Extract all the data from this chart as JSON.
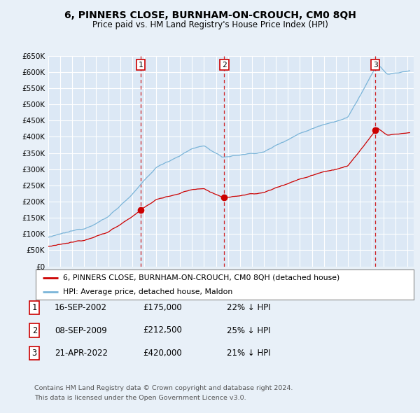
{
  "title": "6, PINNERS CLOSE, BURNHAM-ON-CROUCH, CM0 8QH",
  "subtitle": "Price paid vs. HM Land Registry's House Price Index (HPI)",
  "background_color": "#e8f0f8",
  "plot_bg_color": "#dce8f5",
  "grid_color": "#c8d8e8",
  "ylim": [
    0,
    650000
  ],
  "yticks": [
    0,
    50000,
    100000,
    150000,
    200000,
    250000,
    300000,
    350000,
    400000,
    450000,
    500000,
    550000,
    600000,
    650000
  ],
  "sale_dates": [
    2002.71,
    2009.69,
    2022.3
  ],
  "sale_prices": [
    175000,
    212500,
    420000
  ],
  "sale_labels": [
    "1",
    "2",
    "3"
  ],
  "hpi_color": "#7ab4d8",
  "price_color": "#cc0000",
  "vline_color": "#cc0000",
  "legend_label_price": "6, PINNERS CLOSE, BURNHAM-ON-CROUCH, CM0 8QH (detached house)",
  "legend_label_hpi": "HPI: Average price, detached house, Maldon",
  "table_entries": [
    {
      "num": "1",
      "date": "16-SEP-2002",
      "price": "£175,000",
      "hpi": "22% ↓ HPI"
    },
    {
      "num": "2",
      "date": "08-SEP-2009",
      "price": "£212,500",
      "hpi": "25% ↓ HPI"
    },
    {
      "num": "3",
      "date": "21-APR-2022",
      "price": "£420,000",
      "hpi": "21% ↓ HPI"
    }
  ],
  "footnote1": "Contains HM Land Registry data © Crown copyright and database right 2024.",
  "footnote2": "This data is licensed under the Open Government Licence v3.0."
}
